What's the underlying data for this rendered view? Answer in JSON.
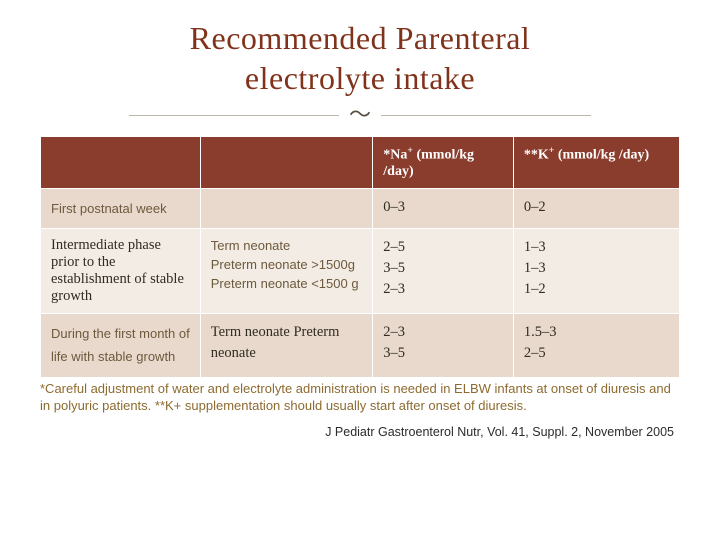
{
  "title_line1": "Recommended Parenteral",
  "title_line2": "electrolyte intake",
  "title_color": "#80321b",
  "ornament_symbol": "～",
  "table": {
    "header_bg": "#8a3d2c",
    "header_fg": "#ffffff",
    "row_bg_alt1": "#e8d9cc",
    "row_bg_alt2": "#f2ece4",
    "text_dark": "#302c21",
    "text_brown": "#6e593d",
    "headers": [
      "",
      "",
      "*Na⁺ (mmol/kg /day)",
      "**K⁺ (mmol/kg /day)"
    ],
    "rows": [
      {
        "bg": "alt1",
        "c0": "First postnatal week",
        "c0_style": "brown",
        "c1": "",
        "c2": "0–3",
        "c3": "0–2"
      },
      {
        "bg": "alt2",
        "c0": "Intermediate phase prior to the establishment of stable growth",
        "c0_style": "dark",
        "c1": "Term neonate\nPreterm neonate >1500g\nPreterm neonate <1500 g",
        "c1_style": "brown",
        "c2": "2–5\n3–5\n2–3",
        "c3": "1–3\n1–3\n1–2"
      },
      {
        "bg": "alt1",
        "c0": "During the first month of life with stable growth",
        "c0_style": "brown",
        "c1": "Term neonate Preterm neonate",
        "c1_style": "dark",
        "c2": "2–3\n3–5",
        "c3": "1.5–3\n2–5"
      }
    ]
  },
  "footnote": {
    "text": "*Careful adjustment of water and electrolyte administration is needed in ELBW infants at onset of diuresis and in polyuric patients.\n**K+ supplementation should usually start after onset of diuresis.",
    "color": "#8d6b30"
  },
  "citation": {
    "text": "J Pediatr Gastroenterol Nutr, Vol. 41, Suppl. 2, November 2005",
    "color": "#2b2b2b"
  }
}
